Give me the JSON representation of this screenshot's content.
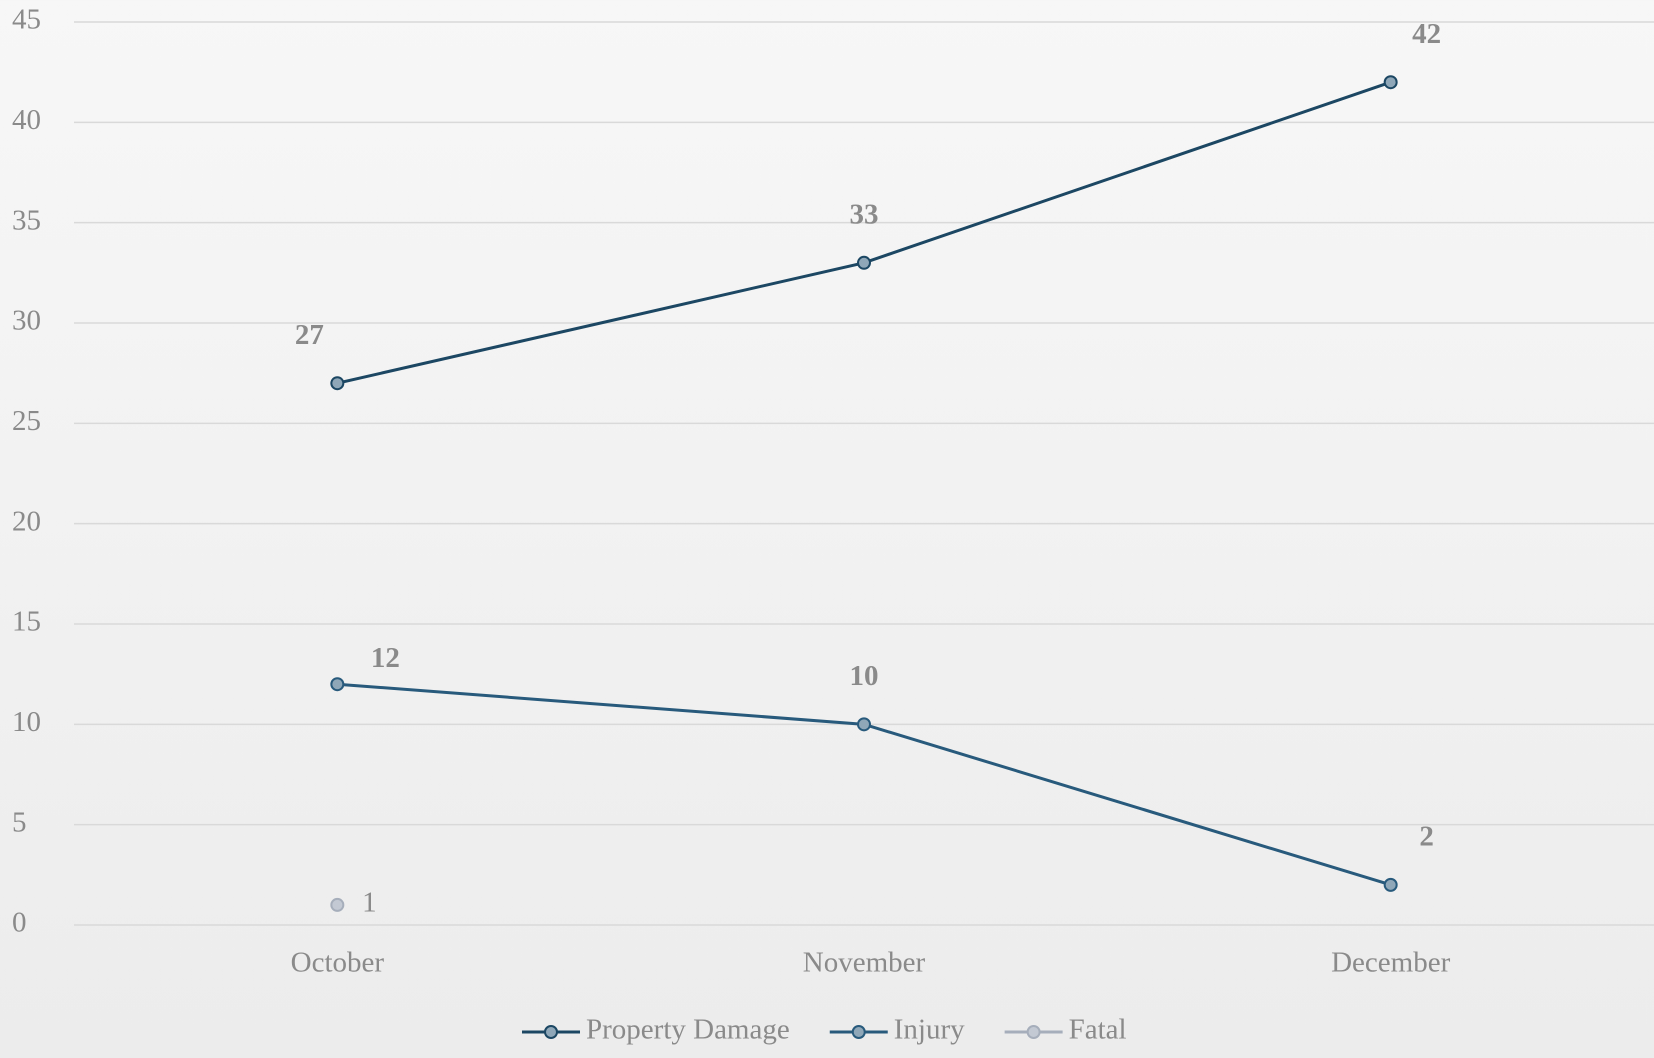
{
  "chart_data": {
    "type": "line",
    "categories": [
      "October",
      "November",
      "December"
    ],
    "series": [
      {
        "name": "Property Damage",
        "color": "#1c4763",
        "values": [
          27,
          33,
          42
        ]
      },
      {
        "name": "Injury",
        "color": "#285a7c",
        "values": [
          12,
          10,
          2
        ]
      },
      {
        "name": "Fatal",
        "color": "#a6aebb",
        "values": [
          1,
          null,
          null
        ]
      }
    ],
    "ylim": [
      0,
      45
    ],
    "yticks": [
      0,
      5,
      10,
      15,
      20,
      25,
      30,
      35,
      40,
      45
    ],
    "grid": true,
    "legend": "bottom"
  }
}
